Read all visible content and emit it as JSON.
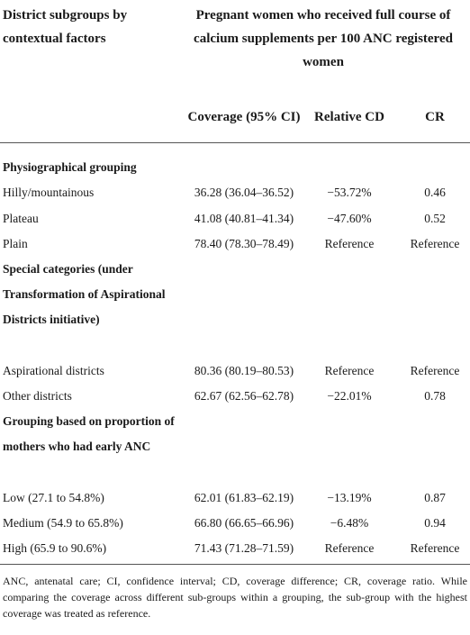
{
  "header": {
    "left_label": "District subgroups by contextual factors",
    "main_label": "Pregnant women who received full course of calcium supplements per 100 ANC registered women",
    "col_coverage": "Coverage (95% CI)",
    "col_relative_cd": "Relative CD",
    "col_cr": "CR"
  },
  "groups": [
    {
      "title": "Physiographical grouping",
      "rows": [
        {
          "name": "Hilly/mountainous",
          "coverage": "36.28 (36.04–36.52)",
          "relative_cd": "−53.72%",
          "cr": "0.46"
        },
        {
          "name": "Plateau",
          "coverage": "41.08 (40.81–41.34)",
          "relative_cd": "−47.60%",
          "cr": "0.52"
        },
        {
          "name": "Plain",
          "coverage": "78.40 (78.30–78.49)",
          "relative_cd": "Reference",
          "cr": "Reference"
        }
      ]
    },
    {
      "title": "Special categories (under Transformation of Aspirational Districts initiative)",
      "rows": [
        {
          "name": "Aspirational districts",
          "coverage": "80.36 (80.19–80.53)",
          "relative_cd": "Reference",
          "cr": "Reference"
        },
        {
          "name": "Other districts",
          "coverage": "62.67 (62.56–62.78)",
          "relative_cd": "−22.01%",
          "cr": "0.78"
        }
      ]
    },
    {
      "title": "Grouping based on proportion of mothers who had early ANC",
      "rows": [
        {
          "name": "Low (27.1 to 54.8%)",
          "coverage": "62.01 (61.83–62.19)",
          "relative_cd": "−13.19%",
          "cr": "0.87"
        },
        {
          "name": "Medium (54.9 to 65.8%)",
          "coverage": "66.80 (66.65–66.96)",
          "relative_cd": "−6.48%",
          "cr": "0.94"
        },
        {
          "name": "High (65.9 to 90.6%)",
          "coverage": "71.43 (71.28–71.59)",
          "relative_cd": "Reference",
          "cr": "Reference"
        }
      ]
    }
  ],
  "footnote": "ANC, antenatal care; CI, confidence interval; CD, coverage difference; CR, coverage ratio. While comparing the coverage across different sub-groups within a grouping, the sub-group with the highest coverage was treated as reference."
}
